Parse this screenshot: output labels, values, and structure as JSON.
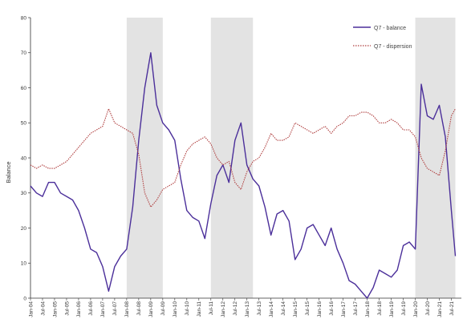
{
  "chart_data": {
    "type": "line",
    "title": "",
    "xlabel": "",
    "ylabel": "Balance",
    "ylim": [
      0,
      80
    ],
    "yticks": [
      0,
      10,
      20,
      30,
      40,
      50,
      60,
      70,
      80
    ],
    "grid": false,
    "legend_position": "top-right",
    "xticks": [
      "Jan-04",
      "Jul-04",
      "Jan-05",
      "Jul-05",
      "Jan-06",
      "Jul-06",
      "Jan-07",
      "Jul-07",
      "Jan-08",
      "Jul-08",
      "Jan-09",
      "Jul-09",
      "Jan-10",
      "Jul-10",
      "Jan-11",
      "Jul-11",
      "Jan-12",
      "Jul-12",
      "Jan-13",
      "Jul-13",
      "Jan-14",
      "Jul-14",
      "Jan-15",
      "Jul-15",
      "Jan-16",
      "Jul-16",
      "Jan-17",
      "Jul-17",
      "Jan-18",
      "Jul-18",
      "Jan-19",
      "Jul-19",
      "Jan-20",
      "Jul-20",
      "Jan-21",
      "Jul-21"
    ],
    "shaded_periods": [
      [
        "Jan-08",
        "Jul-09"
      ],
      [
        "Jul-11",
        "Apr-13"
      ],
      [
        "Jan-20",
        "Sep-21"
      ]
    ],
    "series": [
      {
        "name": "Q7 - balance",
        "color": "#4b2f9a",
        "style": "solid",
        "points": [
          [
            "Jan-04",
            32
          ],
          [
            "Apr-04",
            30
          ],
          [
            "Jul-04",
            29
          ],
          [
            "Oct-04",
            33
          ],
          [
            "Jan-05",
            33
          ],
          [
            "Apr-05",
            30
          ],
          [
            "Jul-05",
            29
          ],
          [
            "Oct-05",
            28
          ],
          [
            "Jan-06",
            25
          ],
          [
            "Apr-06",
            20
          ],
          [
            "Jul-06",
            14
          ],
          [
            "Oct-06",
            13
          ],
          [
            "Jan-07",
            9
          ],
          [
            "Apr-07",
            2
          ],
          [
            "Jul-07",
            9
          ],
          [
            "Oct-07",
            12
          ],
          [
            "Jan-08",
            14
          ],
          [
            "Apr-08",
            26
          ],
          [
            "Jul-08",
            45
          ],
          [
            "Oct-08",
            60
          ],
          [
            "Jan-09",
            70
          ],
          [
            "Apr-09",
            55
          ],
          [
            "Jul-09",
            50
          ],
          [
            "Oct-09",
            48
          ],
          [
            "Jan-10",
            45
          ],
          [
            "Apr-10",
            34
          ],
          [
            "Jul-10",
            25
          ],
          [
            "Oct-10",
            23
          ],
          [
            "Jan-11",
            22
          ],
          [
            "Apr-11",
            17
          ],
          [
            "Jul-11",
            27
          ],
          [
            "Oct-11",
            35
          ],
          [
            "Jan-12",
            38
          ],
          [
            "Apr-12",
            33
          ],
          [
            "Jul-12",
            45
          ],
          [
            "Oct-12",
            50
          ],
          [
            "Jan-13",
            38
          ],
          [
            "Apr-13",
            34
          ],
          [
            "Jul-13",
            32
          ],
          [
            "Oct-13",
            26
          ],
          [
            "Jan-14",
            18
          ],
          [
            "Apr-14",
            24
          ],
          [
            "Jul-14",
            25
          ],
          [
            "Oct-14",
            22
          ],
          [
            "Jan-15",
            11
          ],
          [
            "Apr-15",
            14
          ],
          [
            "Jul-15",
            20
          ],
          [
            "Oct-15",
            21
          ],
          [
            "Jan-16",
            18
          ],
          [
            "Apr-16",
            15
          ],
          [
            "Jul-16",
            20
          ],
          [
            "Oct-16",
            14
          ],
          [
            "Jan-17",
            10
          ],
          [
            "Apr-17",
            5
          ],
          [
            "Jul-17",
            4
          ],
          [
            "Oct-17",
            2
          ],
          [
            "Jan-18",
            0
          ],
          [
            "Apr-18",
            3
          ],
          [
            "Jul-18",
            8
          ],
          [
            "Oct-18",
            7
          ],
          [
            "Jan-19",
            6
          ],
          [
            "Apr-19",
            8
          ],
          [
            "Jul-19",
            15
          ],
          [
            "Oct-19",
            16
          ],
          [
            "Jan-20",
            14
          ],
          [
            "Apr-20",
            61
          ],
          [
            "Jul-20",
            52
          ],
          [
            "Oct-20",
            51
          ],
          [
            "Jan-21",
            55
          ],
          [
            "Apr-21",
            46
          ],
          [
            "Jul-21",
            25
          ],
          [
            "Sep-21",
            12
          ]
        ]
      },
      {
        "name": "Q7 - dispersion",
        "color": "#b04040",
        "style": "dotted",
        "points": [
          [
            "Jan-04",
            38
          ],
          [
            "Apr-04",
            37
          ],
          [
            "Jul-04",
            38
          ],
          [
            "Oct-04",
            37
          ],
          [
            "Jan-05",
            37
          ],
          [
            "Apr-05",
            38
          ],
          [
            "Jul-05",
            39
          ],
          [
            "Oct-05",
            41
          ],
          [
            "Jan-06",
            43
          ],
          [
            "Apr-06",
            45
          ],
          [
            "Jul-06",
            47
          ],
          [
            "Oct-06",
            48
          ],
          [
            "Jan-07",
            49
          ],
          [
            "Apr-07",
            54
          ],
          [
            "Jul-07",
            50
          ],
          [
            "Oct-07",
            49
          ],
          [
            "Jan-08",
            48
          ],
          [
            "Apr-08",
            47
          ],
          [
            "Jul-08",
            41
          ],
          [
            "Oct-08",
            30
          ],
          [
            "Jan-09",
            26
          ],
          [
            "Apr-09",
            28
          ],
          [
            "Jul-09",
            31
          ],
          [
            "Oct-09",
            32
          ],
          [
            "Jan-10",
            33
          ],
          [
            "Apr-10",
            38
          ],
          [
            "Jul-10",
            42
          ],
          [
            "Oct-10",
            44
          ],
          [
            "Jan-11",
            45
          ],
          [
            "Apr-11",
            46
          ],
          [
            "Jul-11",
            44
          ],
          [
            "Oct-11",
            40
          ],
          [
            "Jan-12",
            38
          ],
          [
            "Apr-12",
            39
          ],
          [
            "Jul-12",
            33
          ],
          [
            "Oct-12",
            31
          ],
          [
            "Jan-13",
            36
          ],
          [
            "Apr-13",
            39
          ],
          [
            "Jul-13",
            40
          ],
          [
            "Oct-13",
            43
          ],
          [
            "Jan-14",
            47
          ],
          [
            "Apr-14",
            45
          ],
          [
            "Jul-14",
            45
          ],
          [
            "Oct-14",
            46
          ],
          [
            "Jan-15",
            50
          ],
          [
            "Apr-15",
            49
          ],
          [
            "Jul-15",
            48
          ],
          [
            "Oct-15",
            47
          ],
          [
            "Jan-16",
            48
          ],
          [
            "Apr-16",
            49
          ],
          [
            "Jul-16",
            47
          ],
          [
            "Oct-16",
            49
          ],
          [
            "Jan-17",
            50
          ],
          [
            "Apr-17",
            52
          ],
          [
            "Jul-17",
            52
          ],
          [
            "Oct-17",
            53
          ],
          [
            "Jan-18",
            53
          ],
          [
            "Apr-18",
            52
          ],
          [
            "Jul-18",
            50
          ],
          [
            "Oct-18",
            50
          ],
          [
            "Jan-19",
            51
          ],
          [
            "Apr-19",
            50
          ],
          [
            "Jul-19",
            48
          ],
          [
            "Oct-19",
            48
          ],
          [
            "Jan-20",
            46
          ],
          [
            "Apr-20",
            40
          ],
          [
            "Jul-20",
            37
          ],
          [
            "Oct-20",
            36
          ],
          [
            "Jan-21",
            35
          ],
          [
            "Apr-21",
            42
          ],
          [
            "Jul-21",
            52
          ],
          [
            "Sep-21",
            54
          ]
        ]
      }
    ]
  }
}
